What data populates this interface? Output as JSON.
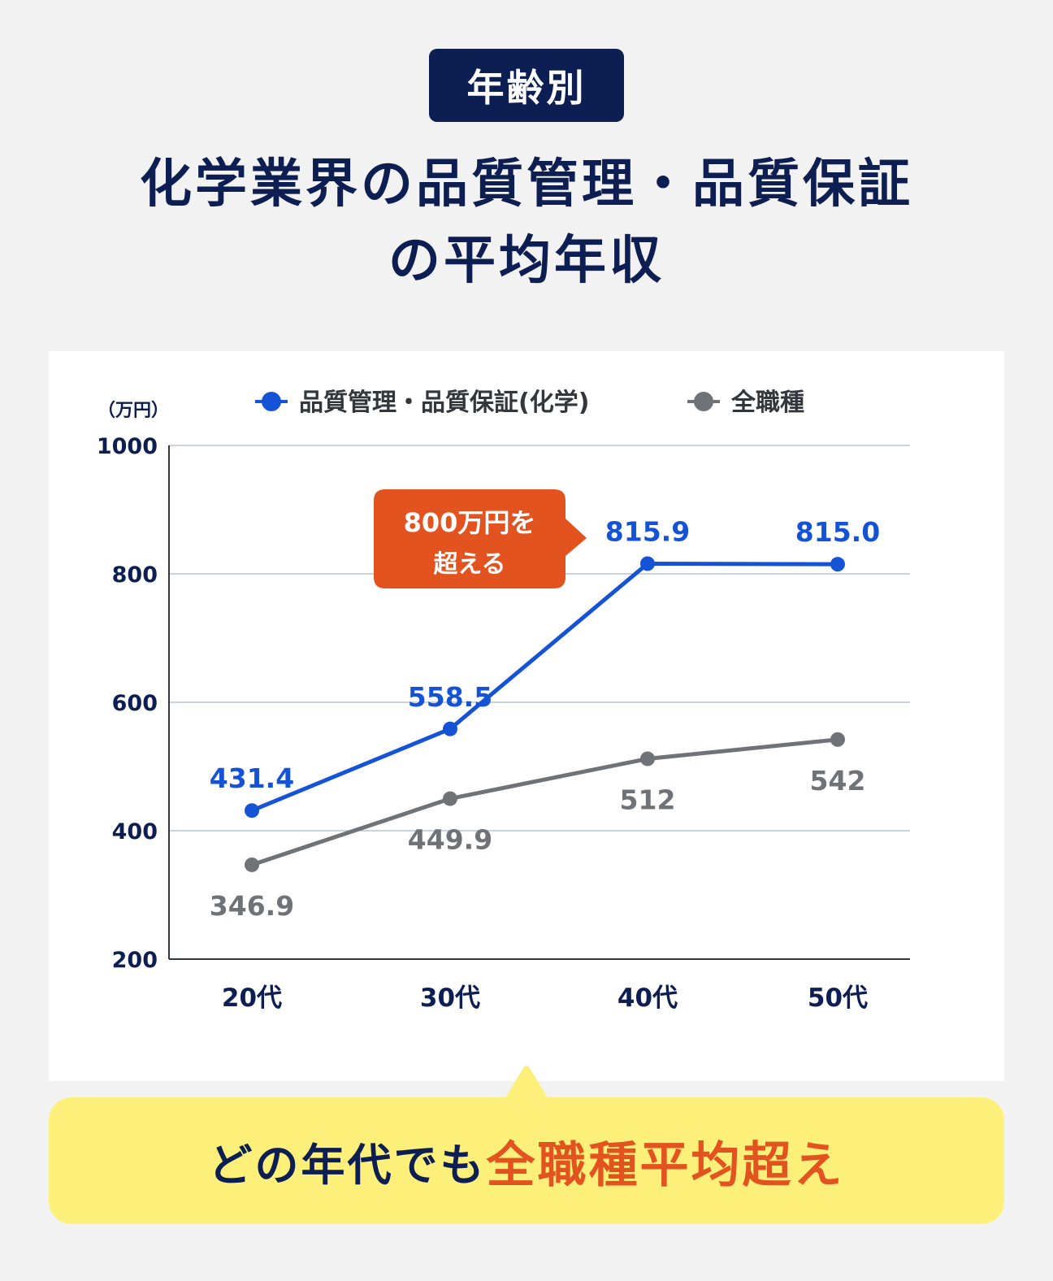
{
  "header": {
    "tag": "年齢別",
    "title_line1": "化学業界の品質管理・品質保証",
    "title_line2": "の平均年収"
  },
  "callout": {
    "line1": "800万円を",
    "line2": "超える"
  },
  "footer": {
    "plain": "どの年代でも",
    "accent": "全職種平均超え"
  },
  "colors": {
    "navy": "#0d1f52",
    "blue": "#1553d6",
    "gray": "#6f7378",
    "orange": "#e2531f",
    "yellow": "#fdf07a"
  },
  "chart_data": {
    "type": "line",
    "unit_label": "（万円）",
    "categories": [
      "20代",
      "30代",
      "40代",
      "50代"
    ],
    "ylim": [
      200,
      1000
    ],
    "yticks": [
      1000,
      800,
      600,
      400,
      200
    ],
    "grid": true,
    "legend_position": "top",
    "series": [
      {
        "name": "品質管理・品質保証(化学)",
        "color": "#1553d6",
        "values": [
          431.4,
          558.5,
          815.9,
          815.0
        ],
        "labels": [
          "431.4",
          "558.5",
          "815.9",
          "815.0"
        ]
      },
      {
        "name": "全職種",
        "color": "#6f7378",
        "values": [
          346.9,
          449.9,
          512,
          542
        ],
        "labels": [
          "346.9",
          "449.9",
          "512",
          "542"
        ]
      }
    ]
  }
}
